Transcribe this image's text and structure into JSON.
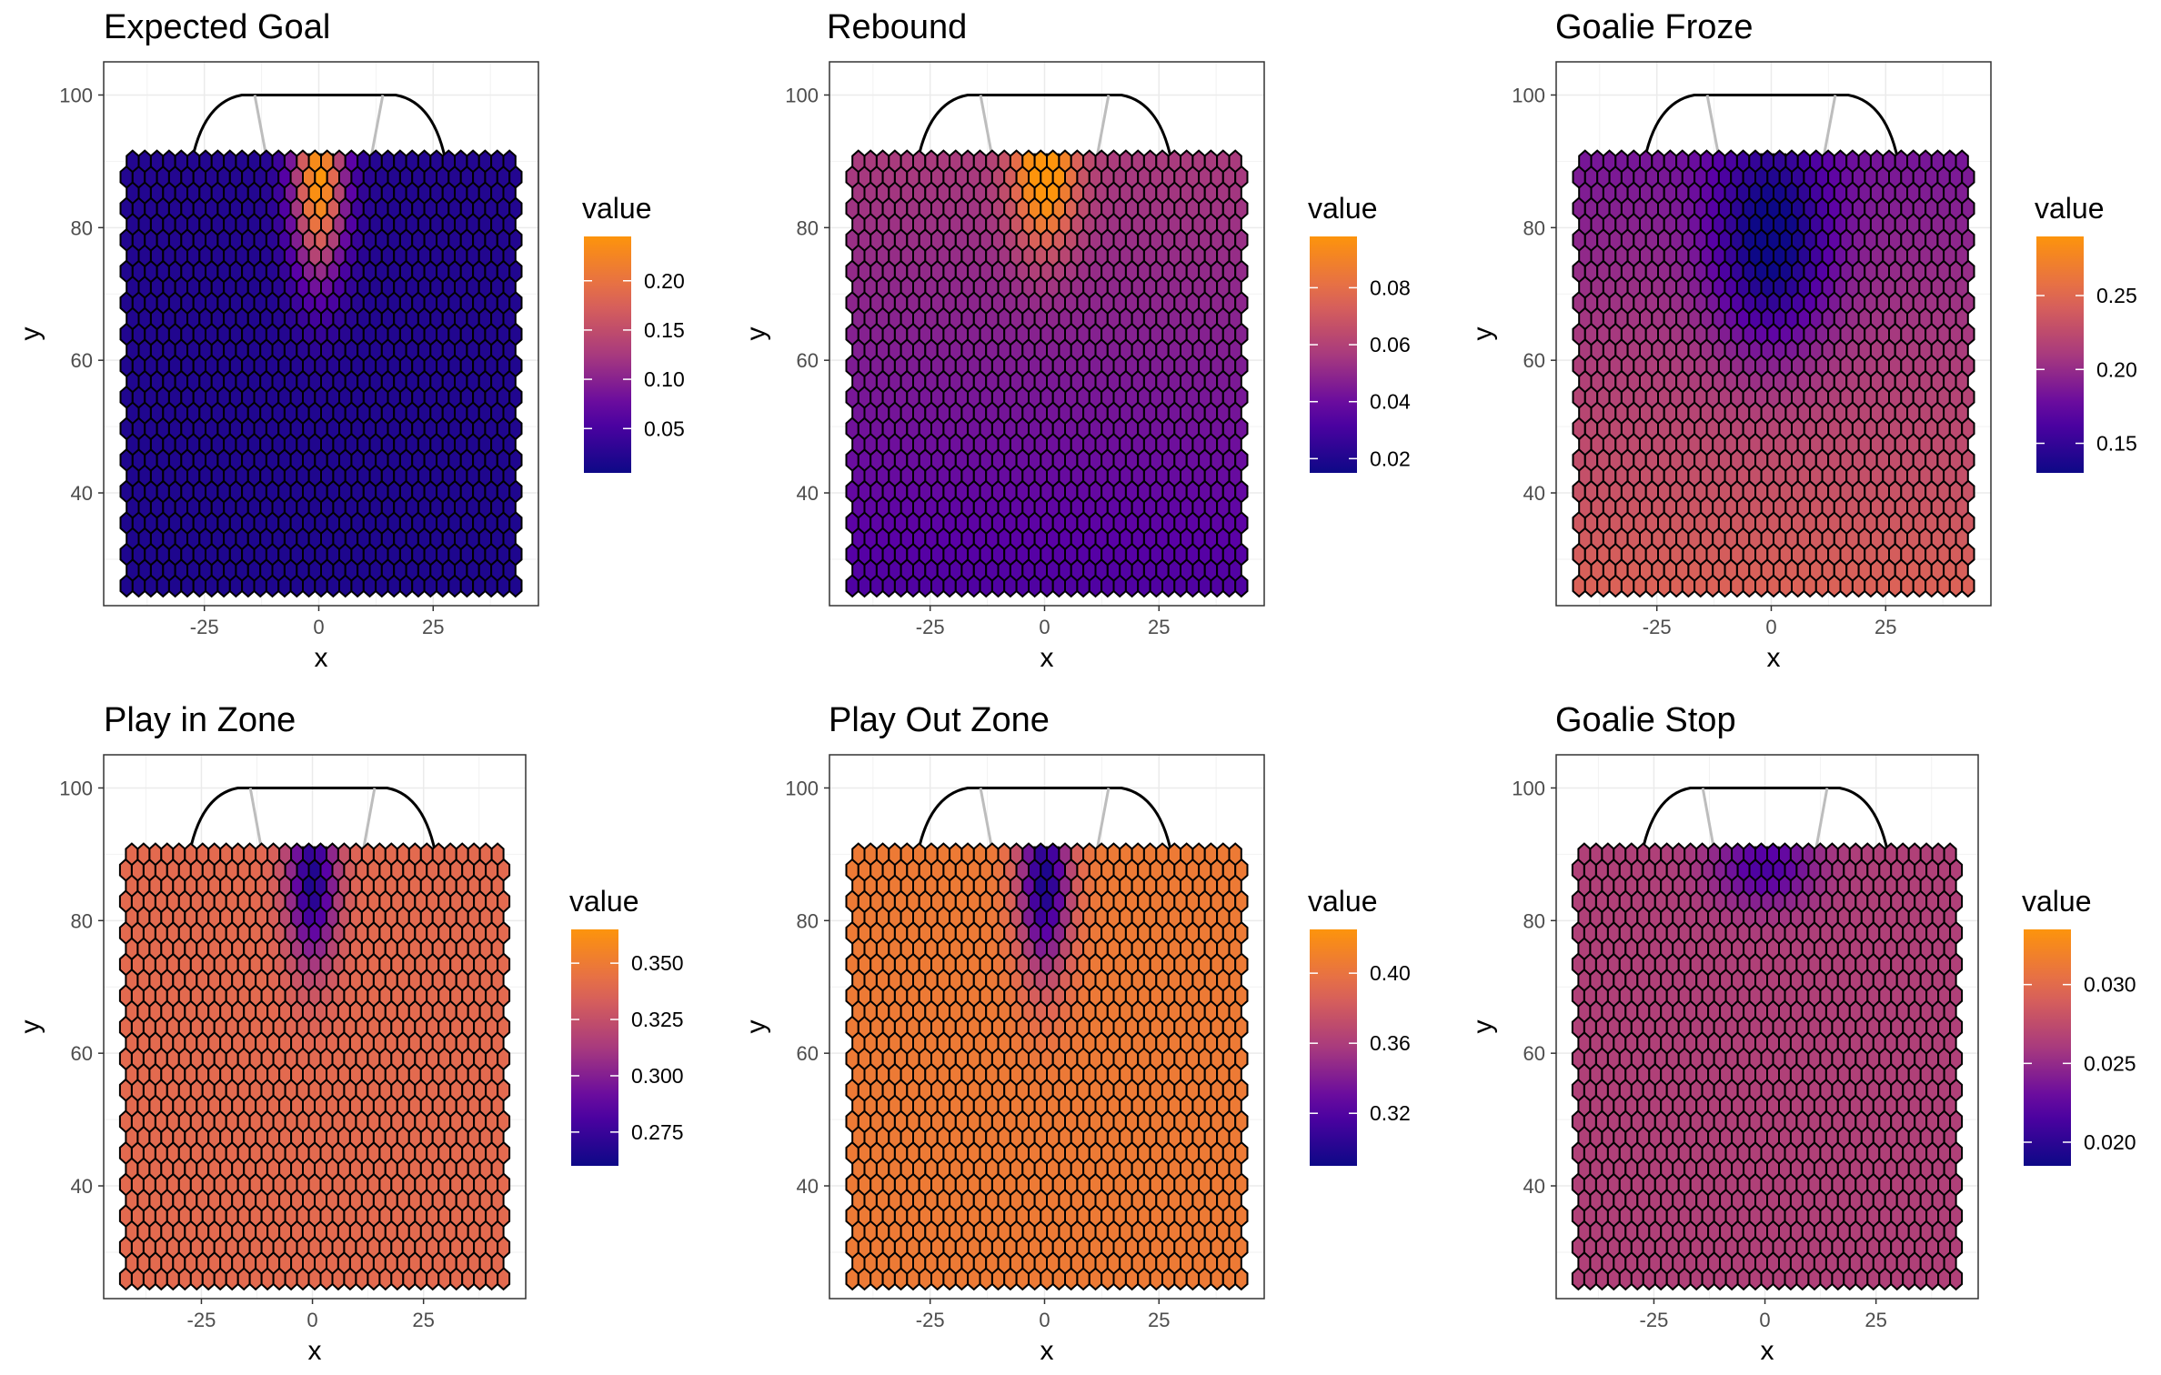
{
  "chart_data": [
    {
      "type": "heatmap",
      "title": "Expected Goal",
      "xlabel": "x",
      "ylabel": "y",
      "xlim": [
        -47,
        48
      ],
      "ylim": [
        23,
        105
      ],
      "xticks": [
        -25,
        0,
        25
      ],
      "xtick_labels": [
        "-25",
        "0",
        "25"
      ],
      "yticks": [
        40,
        60,
        80,
        100
      ],
      "ytick_labels": [
        "40",
        "60",
        "80",
        "100"
      ],
      "grid": true,
      "legend": {
        "title": "value",
        "position": "right",
        "range": [
          0.005,
          0.245
        ],
        "ticks": [
          0.05,
          0.1,
          0.15,
          0.2
        ],
        "tick_labels": [
          "0.05",
          "0.10",
          "0.15",
          "0.20"
        ]
      },
      "colors": {
        "low": "#0d0887",
        "mid": "#a83a7e",
        "high": "#fd9a0c"
      },
      "hex_grid": {
        "x_range": [
          -42,
          43
        ],
        "y_range": [
          26,
          90
        ],
        "columns": 33,
        "rows": 28
      },
      "field": {
        "base": 0.02,
        "hot_x": 0,
        "hot_y": 87,
        "peak": 0.225,
        "spread_x": 4,
        "spread_y": 10,
        "gradient_y": 0.002
      }
    },
    {
      "type": "heatmap",
      "title": "Rebound",
      "xlabel": "x",
      "ylabel": "y",
      "xlim": [
        -47,
        48
      ],
      "ylim": [
        23,
        105
      ],
      "xticks": [
        -25,
        0,
        25
      ],
      "xtick_labels": [
        "-25",
        "0",
        "25"
      ],
      "yticks": [
        40,
        60,
        80,
        100
      ],
      "ytick_labels": [
        "40",
        "60",
        "80",
        "100"
      ],
      "grid": true,
      "legend": {
        "title": "value",
        "position": "right",
        "range": [
          0.015,
          0.098
        ],
        "ticks": [
          0.02,
          0.04,
          0.06,
          0.08
        ],
        "tick_labels": [
          "0.02",
          "0.04",
          "0.06",
          "0.08"
        ]
      },
      "colors": {
        "low": "#0d0887",
        "mid": "#a83a7e",
        "high": "#fd9a0c"
      },
      "hex_grid": {
        "x_range": [
          -42,
          43
        ],
        "y_range": [
          26,
          90
        ],
        "columns": 33,
        "rows": 28
      },
      "field": {
        "base": 0.045,
        "hot_x": 0,
        "hot_y": 88,
        "peak": 0.05,
        "spread_x": 5,
        "spread_y": 8,
        "gradient_y": 0.012
      }
    },
    {
      "type": "heatmap",
      "title": "Goalie Froze",
      "xlabel": "x",
      "ylabel": "y",
      "xlim": [
        -47,
        48
      ],
      "ylim": [
        23,
        105
      ],
      "xticks": [
        -25,
        0,
        25
      ],
      "xtick_labels": [
        "-25",
        "0",
        "25"
      ],
      "yticks": [
        40,
        60,
        80,
        100
      ],
      "ytick_labels": [
        "40",
        "60",
        "80",
        "100"
      ],
      "grid": true,
      "legend": {
        "title": "value",
        "position": "right",
        "range": [
          0.13,
          0.29
        ],
        "ticks": [
          0.15,
          0.2,
          0.25
        ],
        "tick_labels": [
          "0.15",
          "0.20",
          "0.25"
        ]
      },
      "colors": {
        "low": "#0d0887",
        "mid": "#a83a7e",
        "high": "#fd9a0c"
      },
      "hex_grid": {
        "x_range": [
          -42,
          43
        ],
        "y_range": [
          26,
          90
        ],
        "columns": 33,
        "rows": 28
      },
      "field": {
        "base": 0.215,
        "hot_x": 0,
        "hot_y": 77,
        "peak": -0.075,
        "spread_x": 9,
        "spread_y": 11,
        "gradient_y": -0.03
      }
    },
    {
      "type": "heatmap",
      "title": "Play in Zone",
      "xlabel": "x",
      "ylabel": "y",
      "xlim": [
        -47,
        48
      ],
      "ylim": [
        23,
        105
      ],
      "xticks": [
        -25,
        0,
        25
      ],
      "xtick_labels": [
        "-25",
        "0",
        "25"
      ],
      "yticks": [
        40,
        60,
        80,
        100
      ],
      "ytick_labels": [
        "40",
        "60",
        "80",
        "100"
      ],
      "grid": true,
      "legend": {
        "title": "value",
        "position": "right",
        "range": [
          0.26,
          0.365
        ],
        "ticks": [
          0.275,
          0.3,
          0.325,
          0.35
        ],
        "tick_labels": [
          "0.275",
          "0.300",
          "0.325",
          "0.350"
        ]
      },
      "colors": {
        "low": "#0d0887",
        "mid": "#a83a7e",
        "high": "#fd9a0c"
      },
      "hex_grid": {
        "x_range": [
          -42,
          43
        ],
        "y_range": [
          26,
          90
        ],
        "columns": 33,
        "rows": 28
      },
      "field": {
        "base": 0.34,
        "hot_x": 0,
        "hot_y": 86,
        "peak": -0.075,
        "spread_x": 4,
        "spread_y": 9,
        "gradient_y": 0.0
      }
    },
    {
      "type": "heatmap",
      "title": "Play Out Zone",
      "xlabel": "x",
      "ylabel": "y",
      "xlim": [
        -47,
        48
      ],
      "ylim": [
        23,
        105
      ],
      "xticks": [
        -25,
        0,
        25
      ],
      "xtick_labels": [
        "-25",
        "0",
        "25"
      ],
      "yticks": [
        40,
        60,
        80,
        100
      ],
      "ytick_labels": [
        "40",
        "60",
        "80",
        "100"
      ],
      "grid": true,
      "legend": {
        "title": "value",
        "position": "right",
        "range": [
          0.29,
          0.425
        ],
        "ticks": [
          0.32,
          0.36,
          0.4
        ],
        "tick_labels": [
          "0.32",
          "0.36",
          "0.40"
        ]
      },
      "colors": {
        "low": "#0d0887",
        "mid": "#a83a7e",
        "high": "#fd9a0c"
      },
      "hex_grid": {
        "x_range": [
          -42,
          43
        ],
        "y_range": [
          26,
          90
        ],
        "columns": 33,
        "rows": 28
      },
      "field": {
        "base": 0.405,
        "hot_x": 0,
        "hot_y": 86,
        "peak": -0.11,
        "spread_x": 4,
        "spread_y": 10,
        "gradient_y": 0.0
      }
    },
    {
      "type": "heatmap",
      "title": "Goalie Stop",
      "xlabel": "x",
      "ylabel": "y",
      "xlim": [
        -47,
        48
      ],
      "ylim": [
        23,
        105
      ],
      "xticks": [
        -25,
        0,
        25
      ],
      "xtick_labels": [
        "-25",
        "0",
        "25"
      ],
      "yticks": [
        40,
        60,
        80,
        100
      ],
      "ytick_labels": [
        "40",
        "60",
        "80",
        "100"
      ],
      "grid": true,
      "legend": {
        "title": "value",
        "position": "right",
        "range": [
          0.0185,
          0.0335
        ],
        "ticks": [
          0.02,
          0.025,
          0.03
        ],
        "tick_labels": [
          "0.020",
          "0.025",
          "0.030"
        ]
      },
      "colors": {
        "low": "#0d0887",
        "mid": "#a83a7e",
        "high": "#fd9a0c"
      },
      "hex_grid": {
        "x_range": [
          -42,
          43
        ],
        "y_range": [
          26,
          90
        ],
        "columns": 33,
        "rows": 28
      },
      "field": {
        "base": 0.0265,
        "hot_x": 0,
        "hot_y": 88,
        "peak": -0.005,
        "spread_x": 8,
        "spread_y": 4,
        "gradient_y": 0.0
      }
    }
  ]
}
